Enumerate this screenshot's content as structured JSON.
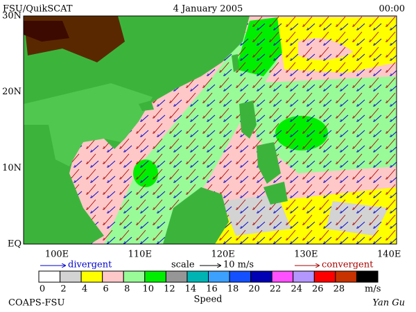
{
  "header": {
    "source": "FSU/QuikSCAT",
    "date": "4 January 2005",
    "time": "00:00"
  },
  "map": {
    "lat_labels": [
      "30N",
      "20N",
      "10N",
      "EQ"
    ],
    "lon_labels": [
      "100E",
      "110E",
      "120E",
      "130E",
      "140E"
    ]
  },
  "legend": {
    "divergent": "divergent",
    "scale": "scale",
    "scale_value": "10 m/s",
    "convergent": "convergent"
  },
  "colorbar": {
    "title": "Speed",
    "unit": "m/s",
    "ticks": [
      0,
      2,
      4,
      6,
      8,
      10,
      12,
      14,
      16,
      18,
      20,
      22,
      24,
      26,
      28
    ],
    "colors": [
      "#ffffff",
      "#d3d3d3",
      "#ffff00",
      "#ffc8c8",
      "#98fb98",
      "#00ee00",
      "#969696",
      "#00b4b4",
      "#3ca0ff",
      "#1450ff",
      "#0000b4",
      "#ff50ff",
      "#b496ff",
      "#ff0000",
      "#c83200",
      "#000000"
    ]
  },
  "footer": {
    "left": "COAPS-FSU",
    "right": "Yan Gu"
  }
}
